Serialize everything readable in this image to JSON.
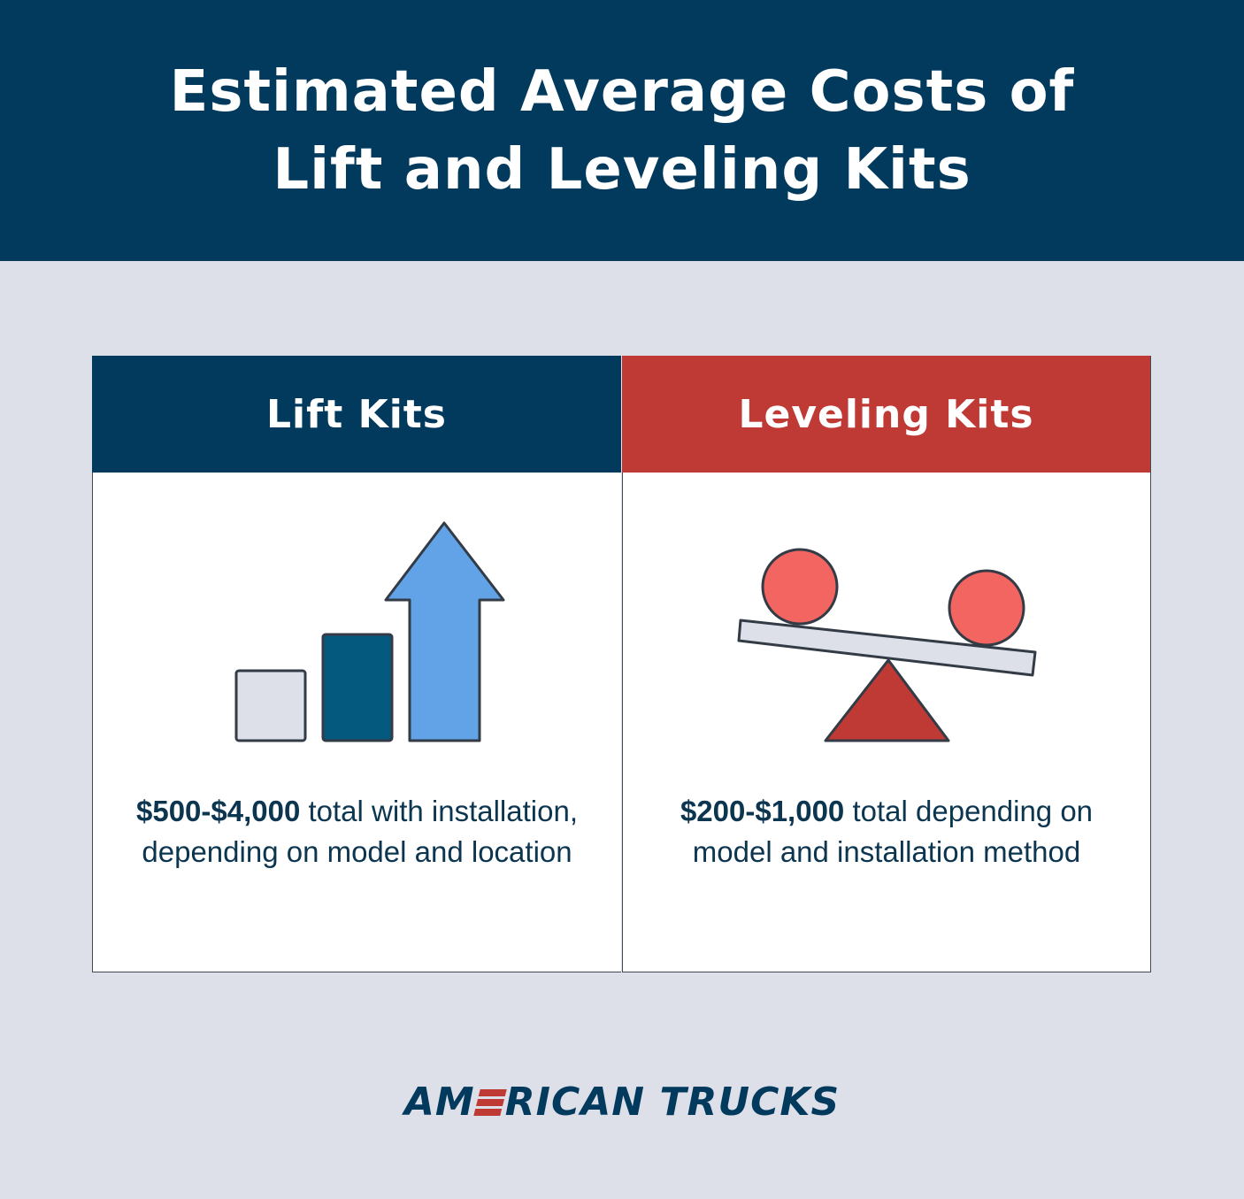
{
  "header": {
    "title_line1": "Estimated Average Costs of",
    "title_line2": "Lift and Leveling Kits"
  },
  "columns": [
    {
      "heading": "Lift Kits",
      "icon": "bar-growth-arrow-icon",
      "price": "$500-$4,000",
      "description": " total with installation, depending on model and location"
    },
    {
      "heading": "Leveling Kits",
      "icon": "seesaw-balance-icon",
      "price": "$200-$1,000",
      "description": " total depending on model and installation method"
    }
  ],
  "logo": {
    "part1": "AM",
    "part2": "RICAN TRUCKS"
  },
  "colors": {
    "navy": "#023a5e",
    "red": "#c03a35",
    "background": "#dde0e8",
    "blue_arrow": "#62a3e8",
    "teal_bar": "#035a7e",
    "coral": "#f26560"
  }
}
